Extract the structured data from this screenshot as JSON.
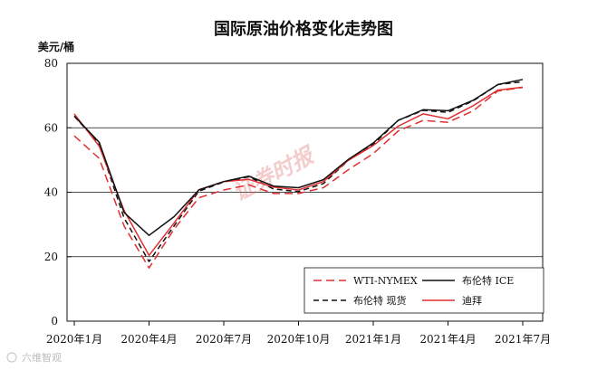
{
  "chart_data": {
    "type": "line",
    "title": "国际原油价格变化走势图",
    "ylabel": "美元/桶",
    "xlabel": "",
    "ylim": [
      0,
      80
    ],
    "yticks": [
      0,
      20,
      40,
      60,
      80
    ],
    "grid": true,
    "legend_position": "bottom-right",
    "x": [
      "2020-01",
      "2020-02",
      "2020-03",
      "2020-04",
      "2020-05",
      "2020-06",
      "2020-07",
      "2020-08",
      "2020-09",
      "2020-10",
      "2020-11",
      "2020-12",
      "2021-01",
      "2021-02",
      "2021-03",
      "2021-04",
      "2021-05",
      "2021-06",
      "2021-07"
    ],
    "xtick_labels": [
      "2020年1月",
      "2020年4月",
      "2020年7月",
      "2020年10月",
      "2021年1月",
      "2021年4月",
      "2021年7月"
    ],
    "series": [
      {
        "name": "WTI-NYMEX",
        "color": "#e03030",
        "dash": "long-dash",
        "values": [
          57.5,
          50.5,
          29.5,
          16.5,
          28.5,
          38.3,
          40.7,
          42.3,
          39.6,
          39.6,
          41.4,
          47.0,
          52.0,
          59.0,
          62.3,
          61.7,
          65.2,
          71.4,
          72.5
        ]
      },
      {
        "name": "布伦特 ICE",
        "color": "#111111",
        "dash": "solid",
        "values": [
          63.6,
          55.5,
          33.7,
          26.6,
          32.4,
          40.7,
          43.3,
          45.0,
          41.9,
          41.4,
          43.9,
          50.2,
          55.3,
          62.3,
          65.6,
          65.3,
          68.5,
          73.4,
          75.0
        ]
      },
      {
        "name": "布伦特 现货",
        "color": "#111111",
        "dash": "dash",
        "values": [
          63.6,
          55.0,
          32.0,
          18.5,
          29.5,
          40.3,
          43.2,
          44.8,
          41.0,
          40.2,
          42.7,
          49.9,
          54.8,
          62.3,
          65.4,
          64.8,
          68.3,
          73.4,
          74.3
        ]
      },
      {
        "name": "迪拜",
        "color": "#e03030",
        "dash": "solid",
        "values": [
          64.3,
          54.3,
          34.3,
          20.4,
          30.4,
          40.8,
          43.3,
          44.0,
          41.6,
          40.7,
          43.3,
          49.9,
          54.5,
          60.5,
          64.3,
          62.8,
          66.8,
          71.7,
          72.6
        ]
      }
    ]
  },
  "watermark": "证券时报",
  "footer_logo": "六维智观"
}
